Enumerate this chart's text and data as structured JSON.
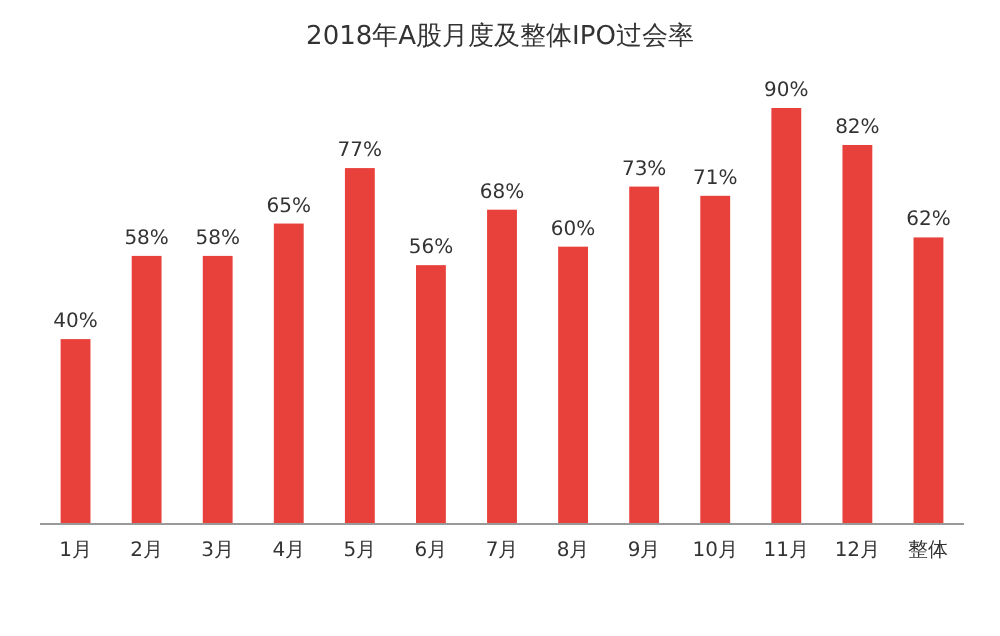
{
  "chart_data": {
    "type": "bar",
    "title": "2018年A股月度及整体IPO过会率",
    "categories": [
      "1月",
      "2月",
      "3月",
      "4月",
      "5月",
      "6月",
      "7月",
      "8月",
      "9月",
      "10月",
      "11月",
      "12月",
      "整体"
    ],
    "values": [
      40,
      58,
      58,
      65,
      77,
      56,
      68,
      60,
      73,
      71,
      90,
      82,
      62
    ],
    "value_labels": [
      "40%",
      "58%",
      "58%",
      "65%",
      "77%",
      "56%",
      "68%",
      "60%",
      "73%",
      "71%",
      "90%",
      "82%",
      "62%"
    ],
    "color": "#e8403a"
  }
}
